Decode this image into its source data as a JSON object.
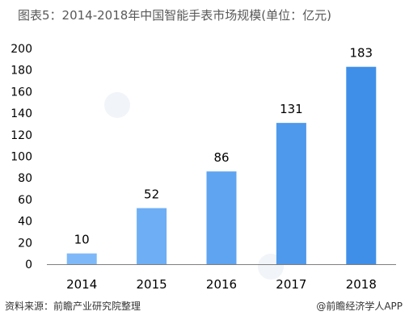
{
  "title": "图表5：2014-2018年中国智能手表市场规模(单位：亿元)",
  "source": "资料来源：前瞻产业研究院整理",
  "credit": "@前瞻经济学人APP",
  "colors": {
    "bar_start": "#7eb8f8",
    "bar_end": "#3f8fe8",
    "axis": "#7f7f7f",
    "tick_text": "#000000"
  },
  "chart_data": {
    "type": "bar",
    "title": "图表5：2014-2018年中国智能手表市场规模(单位：亿元)",
    "categories": [
      "2014",
      "2015",
      "2016",
      "2017",
      "2018"
    ],
    "values": [
      10,
      52,
      86,
      131,
      183
    ],
    "data_labels": [
      "10",
      "52",
      "86",
      "131",
      "183"
    ],
    "xlabel": "",
    "ylabel": "",
    "ylim": [
      0,
      200
    ],
    "yticks": [
      "0",
      "20",
      "40",
      "60",
      "80",
      "100",
      "120",
      "140",
      "160",
      "180",
      "200"
    ],
    "grid": false,
    "legend": "none"
  }
}
